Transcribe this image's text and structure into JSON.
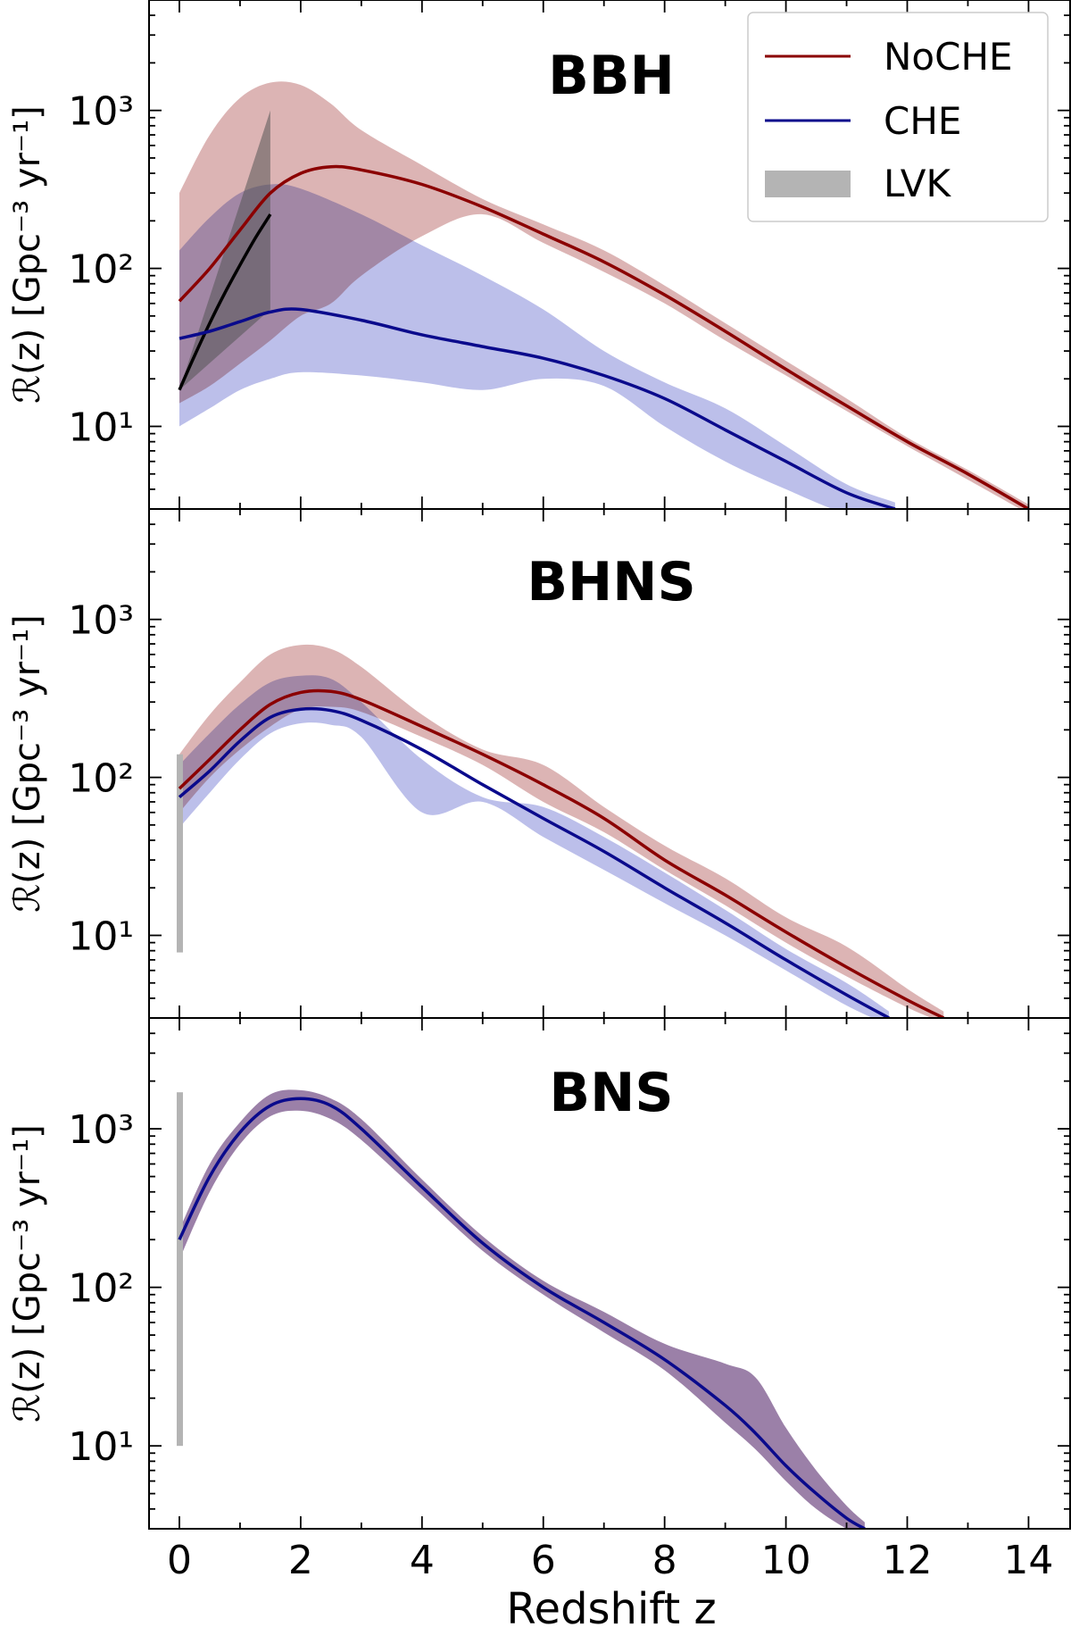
{
  "figure": {
    "x_axis_label": "Redshift z",
    "x_tick_labels": [
      "0",
      "2",
      "4",
      "6",
      "8",
      "10",
      "12",
      "14"
    ],
    "y_axis_label": "ℛ(z) [Gpc⁻³ yr⁻¹]",
    "y_tick_labels": [
      "10¹",
      "10²",
      "10³"
    ]
  },
  "legend": {
    "placement": "top-right of BBH panel",
    "entries": [
      {
        "label": "NoCHE",
        "kind": "line",
        "color": "#8b0000"
      },
      {
        "label": "CHE",
        "kind": "line",
        "color": "#0a0a8c"
      },
      {
        "label": "LVK",
        "kind": "patch",
        "color": "#b4b4b4"
      }
    ]
  },
  "colors": {
    "noche_line": "#8b0000",
    "noche_band": "#d4a3a3",
    "che_line": "#0a0a8c",
    "che_band": "#a8aee3",
    "overlap_band": "#9b80a8",
    "lvk": "#b4b4b4",
    "lvk_fit": "#000000"
  },
  "chart_data": [
    {
      "type": "line",
      "title": "BBH",
      "xlabel": "Redshift z",
      "ylabel": "ℛ(z) [Gpc⁻³ yr⁻¹]",
      "yscale": "log",
      "xlim": [
        -0.5,
        14.7
      ],
      "ylim": [
        3,
        5000
      ],
      "series": [
        {
          "name": "NoCHE",
          "color": "#8b0000",
          "x": [
            0,
            0.5,
            1,
            1.5,
            2,
            2.5,
            3,
            4,
            5,
            6,
            7,
            8,
            9,
            10,
            11,
            12,
            13,
            14
          ],
          "y": [
            62,
            100,
            175,
            300,
            400,
            440,
            420,
            340,
            245,
            165,
            110,
            68,
            40,
            23,
            13.5,
            8,
            5,
            3
          ],
          "lower": [
            14,
            18,
            25,
            35,
            50,
            60,
            90,
            160,
            220,
            145,
            95,
            60,
            35,
            21,
            12.5,
            7.5,
            4.6,
            2.8
          ],
          "upper": [
            300,
            700,
            1200,
            1500,
            1450,
            1100,
            750,
            450,
            275,
            190,
            130,
            78,
            45,
            26,
            15,
            8.5,
            5.3,
            3.2
          ]
        },
        {
          "name": "CHE",
          "color": "#0a0a8c",
          "x": [
            0,
            0.5,
            1,
            1.5,
            2,
            3,
            4,
            5,
            6,
            7,
            8,
            9,
            10,
            11,
            11.8
          ],
          "y": [
            36,
            40,
            46,
            53,
            55,
            47,
            38,
            32,
            27,
            21,
            15,
            9.5,
            6,
            3.8,
            3
          ],
          "lower": [
            10,
            13,
            17,
            20,
            22,
            21,
            19,
            17,
            20,
            18,
            10,
            6,
            4,
            2.8,
            2.5
          ],
          "upper": [
            130,
            210,
            300,
            340,
            320,
            220,
            140,
            90,
            55,
            30,
            19,
            13,
            7.5,
            4.3,
            3.3
          ]
        }
      ],
      "lvk": {
        "band_x": [
          0,
          1.5
        ],
        "band_lower": [
          17,
          55
        ],
        "band_upper": [
          17,
          1000
        ],
        "fit_x": [
          0,
          0.25,
          0.5,
          0.75,
          1,
          1.25,
          1.5
        ],
        "fit_y": [
          17,
          28,
          45,
          70,
          105,
          155,
          220
        ]
      }
    },
    {
      "type": "line",
      "title": "BHNS",
      "xlabel": "Redshift z",
      "ylabel": "ℛ(z) [Gpc⁻³ yr⁻¹]",
      "yscale": "log",
      "xlim": [
        -0.5,
        14.7
      ],
      "ylim": [
        3,
        5000
      ],
      "series": [
        {
          "name": "NoCHE",
          "color": "#8b0000",
          "x": [
            0,
            0.5,
            1,
            1.5,
            2,
            2.5,
            3,
            4,
            5,
            6,
            7,
            8,
            9,
            10,
            11,
            12,
            12.6
          ],
          "y": [
            85,
            130,
            200,
            290,
            345,
            350,
            310,
            210,
            140,
            90,
            55,
            30,
            18,
            10.5,
            6.3,
            3.9,
            3
          ],
          "lower": [
            60,
            100,
            150,
            210,
            270,
            280,
            260,
            180,
            120,
            70,
            45,
            26,
            15.5,
            9,
            5.5,
            3.5,
            2.8
          ],
          "upper": [
            140,
            250,
            400,
            600,
            690,
            650,
            500,
            250,
            150,
            120,
            65,
            37,
            23,
            13,
            8.5,
            4.6,
            3.3
          ]
        },
        {
          "name": "CHE",
          "color": "#0a0a8c",
          "x": [
            0,
            0.5,
            1,
            1.5,
            2,
            2.5,
            3,
            4,
            5,
            6,
            7,
            8,
            9,
            10,
            11,
            11.7
          ],
          "y": [
            75,
            110,
            170,
            240,
            270,
            265,
            230,
            150,
            90,
            55,
            34,
            20,
            12,
            7,
            4.2,
            3
          ],
          "lower": [
            48,
            80,
            130,
            190,
            220,
            215,
            180,
            60,
            70,
            42,
            26,
            16,
            10,
            6,
            3.6,
            2.7
          ],
          "upper": [
            120,
            190,
            290,
            400,
            440,
            420,
            300,
            130,
            75,
            65,
            42,
            25,
            14.5,
            8.2,
            5,
            3.3
          ]
        }
      ],
      "lvk": {
        "band_x": [
          0,
          0.05
        ],
        "band_lower": [
          7.8,
          7.8
        ],
        "band_upper": [
          140,
          140
        ]
      }
    },
    {
      "type": "line",
      "title": "BNS",
      "xlabel": "Redshift z",
      "ylabel": "ℛ(z) [Gpc⁻³ yr⁻¹]",
      "yscale": "log",
      "xlim": [
        -0.5,
        14.7
      ],
      "ylim": [
        3,
        5000
      ],
      "series": [
        {
          "name": "NoCHE",
          "color": "#8b0000",
          "x": [
            0,
            0.5,
            1,
            1.5,
            2,
            2.5,
            3,
            4,
            5,
            6,
            7,
            8,
            9,
            9.5,
            10,
            10.5,
            11,
            11.3
          ],
          "y": [
            200,
            500,
            950,
            1400,
            1550,
            1400,
            1000,
            430,
            190,
            100,
            60,
            35,
            18,
            12,
            7.5,
            5,
            3.5,
            3
          ],
          "lower": [
            150,
            400,
            800,
            1200,
            1300,
            1150,
            850,
            380,
            170,
            90,
            52,
            30,
            14,
            9.5,
            6,
            4,
            3,
            2.7
          ],
          "upper": [
            230,
            600,
            1100,
            1650,
            1750,
            1550,
            1150,
            480,
            210,
            110,
            70,
            44,
            33,
            27,
            13,
            7,
            4.2,
            3.3
          ]
        },
        {
          "name": "CHE",
          "color": "#0a0a8c",
          "x": [
            0,
            0.5,
            1,
            1.5,
            2,
            2.5,
            3,
            4,
            5,
            6,
            7,
            8,
            9,
            9.5,
            10,
            10.5,
            11,
            11.3
          ],
          "y": [
            200,
            500,
            950,
            1400,
            1550,
            1400,
            1000,
            430,
            190,
            100,
            60,
            35,
            18,
            12,
            7.5,
            5,
            3.5,
            3
          ],
          "lower": [
            150,
            400,
            800,
            1200,
            1300,
            1150,
            850,
            380,
            170,
            90,
            52,
            30,
            14,
            9.5,
            6,
            4,
            3,
            2.7
          ],
          "upper": [
            230,
            600,
            1100,
            1650,
            1750,
            1550,
            1150,
            480,
            210,
            110,
            70,
            44,
            33,
            27,
            13,
            7,
            4.2,
            3.3
          ]
        }
      ],
      "lvk": {
        "band_x": [
          0,
          0.05
        ],
        "band_lower": [
          10,
          10
        ],
        "band_upper": [
          1700,
          1700
        ]
      }
    }
  ]
}
